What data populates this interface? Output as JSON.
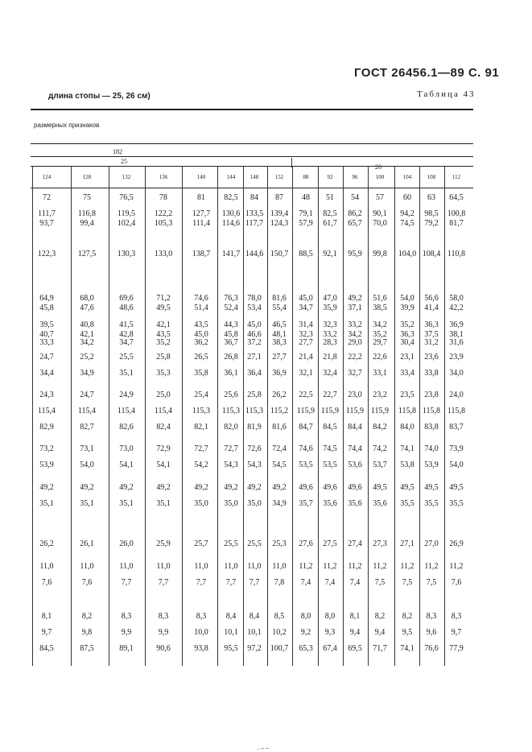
{
  "page_header": "ГОСТ 26456.1—89 С. 91",
  "subtitle": "длина стопы — 25, 26 см)",
  "table_label": "Таблица 43",
  "group_label": "размерных признаков",
  "height_label": "182",
  "foot_length_labels": [
    "25",
    "26"
  ],
  "columns": [
    "124",
    "128",
    "132",
    "136",
    "140",
    "144",
    "148",
    "152",
    "88",
    "92",
    "96",
    "100",
    "104",
    "108",
    "112"
  ],
  "rows": [
    [
      "72",
      "75",
      "76,5",
      "78",
      "81",
      "82,5",
      "84",
      "87",
      "48",
      "51",
      "54",
      "57",
      "60",
      "63",
      "64,5"
    ],
    [
      "111,7",
      "116,8",
      "119,5",
      "122,2",
      "127,7",
      "130,6",
      "133,5",
      "139,4",
      "79,1",
      "82,5",
      "86,2",
      "90,1",
      "94,2",
      "98,5",
      "100,8"
    ],
    [
      "93,7",
      "99,4",
      "102,4",
      "105,3",
      "111,4",
      "114,6",
      "117,7",
      "124,3",
      "57,9",
      "61,7",
      "65,7",
      "70,0",
      "74,5",
      "79,2",
      "81,7"
    ],
    [
      "122,3",
      "127,5",
      "130,3",
      "133,0",
      "138,7",
      "141,7",
      "144,6",
      "150,7",
      "88,5",
      "92,1",
      "95,9",
      "99,8",
      "104,0",
      "108,4",
      "110,8"
    ],
    [
      "64,9",
      "68,0",
      "69,6",
      "71,2",
      "74,6",
      "76,3",
      "78,0",
      "81,6",
      "45,0",
      "47,0",
      "49,2",
      "51,6",
      "54,0",
      "56,6",
      "58,0"
    ],
    [
      "45,8",
      "47,6",
      "48,6",
      "49,5",
      "51,4",
      "52,4",
      "53,4",
      "55,4",
      "34,7",
      "35,9",
      "37,1",
      "38,5",
      "39,9",
      "41,4",
      "42,2"
    ],
    [
      "39,5",
      "40,8",
      "41,5",
      "42,1",
      "43,5",
      "44,3",
      "45,0",
      "46,5",
      "31,4",
      "32,3",
      "33,2",
      "34,2",
      "35,2",
      "36,3",
      "36,9"
    ],
    [
      "40,7",
      "42,1",
      "42,8",
      "43,5",
      "45,0",
      "45,8",
      "46,6",
      "48,1",
      "32,3",
      "33,2",
      "34,2",
      "35,2",
      "36,3",
      "37,5",
      "38,1"
    ],
    [
      "33,3",
      "34,2",
      "34,7",
      "35,2",
      "36,2",
      "36,7",
      "37,2",
      "38,3",
      "27,7",
      "28,3",
      "29,0",
      "29,7",
      "30,4",
      "31,2",
      "31,6"
    ],
    [
      "24,7",
      "25,2",
      "25,5",
      "25,8",
      "26,5",
      "26,8",
      "27,1",
      "27,7",
      "21,4",
      "21,8",
      "22,2",
      "22,6",
      "23,1",
      "23,6",
      "23,9"
    ],
    [
      "34,4",
      "34,9",
      "35,1",
      "35,3",
      "35,8",
      "36,1",
      "36,4",
      "36,9",
      "32,1",
      "32,4",
      "32,7",
      "33,1",
      "33,4",
      "33,8",
      "34,0"
    ],
    [
      "24,3",
      "24,7",
      "24,9",
      "25,0",
      "25,4",
      "25,6",
      "25,8",
      "26,2",
      "22,5",
      "22,7",
      "23,0",
      "23,2",
      "23,5",
      "23,8",
      "24,0"
    ],
    [
      "115,4",
      "115,4",
      "115,4",
      "115,4",
      "115,3",
      "115,3",
      "115,3",
      "115,2",
      "115,9",
      "115,9",
      "115,9",
      "115,9",
      "115,8",
      "115,8",
      "115,8"
    ],
    [
      "82,9",
      "82,7",
      "82,6",
      "82,4",
      "82,1",
      "82,0",
      "81,9",
      "81,6",
      "84,7",
      "84,5",
      "84,4",
      "84,2",
      "84,0",
      "83,8",
      "83,7"
    ],
    [
      "73,2",
      "73,1",
      "73,0",
      "72,9",
      "72,7",
      "72,7",
      "72,6",
      "72,4",
      "74,6",
      "74,5",
      "74,4",
      "74,2",
      "74,1",
      "74,0",
      "73,9"
    ],
    [
      "53,9",
      "54,0",
      "54,1",
      "54,1",
      "54,2",
      "54,3",
      "54,3",
      "54,5",
      "53,5",
      "53,5",
      "53,6",
      "53,7",
      "53,8",
      "53,9",
      "54,0"
    ],
    [
      "49,2",
      "49,2",
      "49,2",
      "49,2",
      "49,2",
      "49,2",
      "49,2",
      "49,2",
      "49,6",
      "49,6",
      "49,6",
      "49,5",
      "49,5",
      "49,5",
      "49,5"
    ],
    [
      "35,1",
      "35,1",
      "35,1",
      "35,1",
      "35,0",
      "35,0",
      "35,0",
      "34,9",
      "35,7",
      "35,6",
      "35,6",
      "35,6",
      "35,5",
      "35,5",
      "35,5"
    ],
    [
      "26,2",
      "26,1",
      "26,0",
      "25,9",
      "25,7",
      "25,5",
      "25,5",
      "25,3",
      "27,6",
      "27,5",
      "27,4",
      "27,3",
      "27,1",
      "27,0",
      "26,9"
    ],
    [
      "11,0",
      "11,0",
      "11,0",
      "11,0",
      "11,0",
      "11,0",
      "11,0",
      "11,0",
      "11,2",
      "11,2",
      "11,2",
      "11,2",
      "11,2",
      "11,2",
      "11,2"
    ],
    [
      "7,6",
      "7,6",
      "7,7",
      "7,7",
      "7,7",
      "7,7",
      "7,7",
      "7,8",
      "7,4",
      "7,4",
      "7,4",
      "7,5",
      "7,5",
      "7,5",
      "7,6"
    ],
    [
      "8,1",
      "8,2",
      "8,3",
      "8,3",
      "8,3",
      "8,4",
      "8,4",
      "8,5",
      "8,0",
      "8,0",
      "8,1",
      "8,2",
      "8,2",
      "8,3",
      "8,3"
    ],
    [
      "9,7",
      "9,8",
      "9,9",
      "9,9",
      "10,0",
      "10,1",
      "10,1",
      "10,2",
      "9,2",
      "9,3",
      "9,4",
      "9,4",
      "9,5",
      "9,6",
      "9,7"
    ],
    [
      "84,5",
      "87,5",
      "89,1",
      "90,6",
      "93,8",
      "95,5",
      "97,2",
      "100,7",
      "65,3",
      "67,4",
      "69,5",
      "71,7",
      "74,1",
      "76,6",
      "77,9"
    ]
  ]
}
